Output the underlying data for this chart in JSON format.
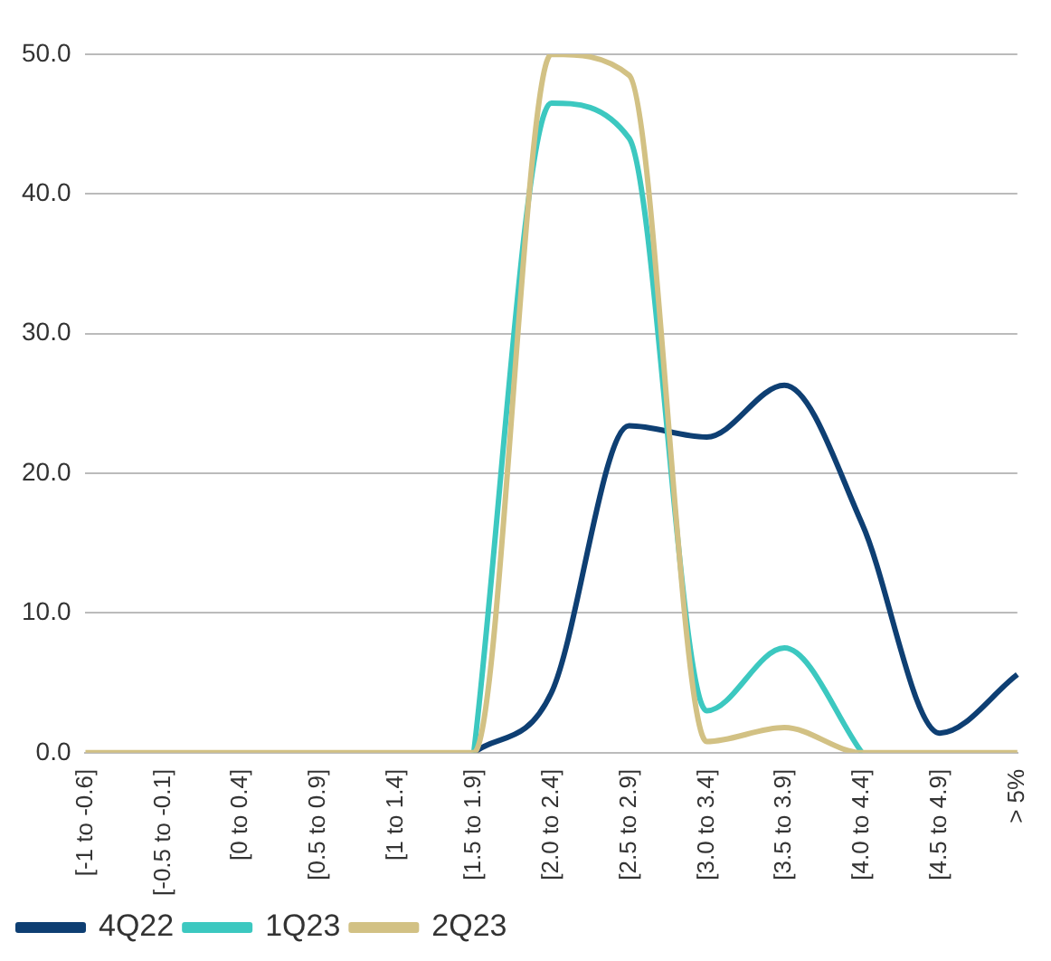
{
  "chart_data": {
    "type": "line",
    "categories": [
      "[-1 to -0.6]",
      "[-0.5 to -0.1]",
      "[0 to 0.4]",
      "[0.5 to 0.9]",
      "[1 to 1.4]",
      "[1.5 to 1.9]",
      "[2.0 to 2.4]",
      "[2.5 to 2.9]",
      "[3.0 to 3.4]",
      "[3.5 to 3.9]",
      "[4.0 to 4.4]",
      "[4.5 to 4.9]",
      "> 5%"
    ],
    "series": [
      {
        "name": "4Q22",
        "color": "#0e3f73",
        "values": [
          null,
          null,
          null,
          null,
          null,
          0,
          4.3,
          23.4,
          22.6,
          26.3,
          16.4,
          1.4,
          5.6
        ]
      },
      {
        "name": "1Q23",
        "color": "#3cc8c0",
        "values": [
          null,
          null,
          null,
          null,
          null,
          0,
          46.5,
          44.0,
          3.0,
          7.5,
          0,
          null,
          null
        ]
      },
      {
        "name": "2Q23",
        "color": "#d2c184",
        "values": [
          0,
          0,
          0,
          0,
          0,
          0,
          50.0,
          48.5,
          0.8,
          1.8,
          0,
          0,
          0
        ]
      }
    ],
    "ylim": [
      0,
      50
    ],
    "yticks": [
      {
        "value": 0,
        "label": "0.0"
      },
      {
        "value": 10,
        "label": "10.0"
      },
      {
        "value": 20,
        "label": "20.0"
      },
      {
        "value": 30,
        "label": "30.0"
      },
      {
        "value": 40,
        "label": "40.0"
      },
      {
        "value": 50,
        "label": "50.0"
      }
    ],
    "grid": "y",
    "legend": "bottom left",
    "marker": "none",
    "line_style": "solid"
  }
}
